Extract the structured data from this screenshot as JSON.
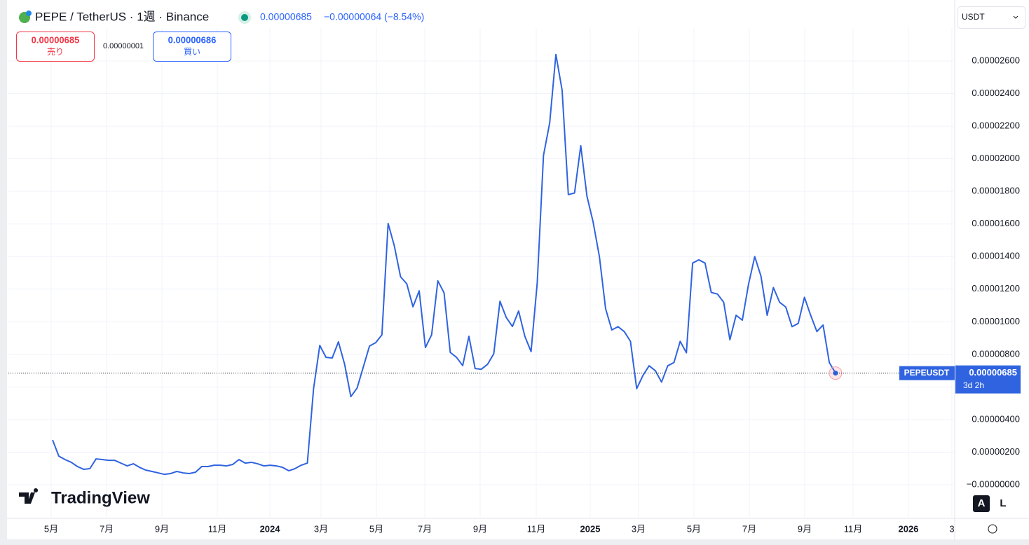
{
  "header": {
    "title": "PEPE / TetherUS · 1週 · Binance",
    "price": "0.00000685",
    "change": "−0.00000064 (−8.54%)",
    "sell_price": "0.00000685",
    "sell_label": "売り",
    "spread": "0.00000001",
    "buy_price": "0.00000686",
    "buy_label": "買い",
    "currency": "USDT"
  },
  "chart_data": {
    "type": "line",
    "series": [
      {
        "name": "PEPEUSDT",
        "color": "#2f63e0",
        "values": [
          2.75e-06,
          1.76e-06,
          1.55e-06,
          1.38e-06,
          1.12e-06,
          9.5e-07,
          9.9e-07,
          1.59e-06,
          1.55e-06,
          1.5e-06,
          1.5e-06,
          1.33e-06,
          1.16e-06,
          1.29e-06,
          1.07e-06,
          9e-07,
          8.2e-07,
          7.3e-07,
          6.4e-07,
          6.9e-07,
          8.2e-07,
          7.3e-07,
          6.9e-07,
          7.7e-07,
          1.12e-06,
          1.12e-06,
          1.2e-06,
          1.2e-06,
          1.16e-06,
          1.25e-06,
          1.55e-06,
          1.33e-06,
          1.38e-06,
          1.29e-06,
          1.16e-06,
          1.2e-06,
          1.16e-06,
          1.07e-06,
          8.6e-07,
          9.9e-07,
          1.2e-06,
          1.33e-06,
          5.89e-06,
          8.55e-06,
          7.82e-06,
          7.78e-06,
          8.77e-06,
          7.39e-06,
          5.41e-06,
          5.93e-06,
          7.22e-06,
          8.51e-06,
          8.72e-06,
          9.2e-06,
          1.603e-05,
          1.465e-05,
          1.276e-05,
          1.233e-05,
          1.092e-05,
          1.19e-05,
          8.42e-06,
          9.2e-06,
          1.251e-05,
          1.178e-05,
          8.12e-06,
          7.82e-06,
          7.31e-06,
          9.11e-06,
          7.13e-06,
          7.09e-06,
          7.39e-06,
          8.04e-06,
          1.126e-05,
          1.027e-05,
          9.71e-06,
          1.066e-05,
          9.11e-06,
          8.17e-06,
          1.24e-05,
          2.02e-05,
          2.22e-05,
          2.64e-05,
          2.42e-05,
          1.78e-05,
          1.79e-05,
          2.08e-05,
          1.77e-05,
          1.61e-05,
          1.4e-05,
          1.08e-05,
          9.5e-06,
          9.7e-06,
          9.4e-06,
          8.8e-06,
          5.9e-06,
          6.7e-06,
          7.3e-06,
          7e-06,
          6.3e-06,
          7.3e-06,
          7.5e-06,
          8.8e-06,
          8.1e-06,
          1.36e-05,
          1.38e-05,
          1.36e-05,
          1.18e-05,
          1.17e-05,
          1.12e-05,
          8.9e-06,
          1.04e-05,
          1.01e-05,
          1.23e-05,
          1.4e-05,
          1.28e-05,
          1.04e-05,
          1.21e-05,
          1.12e-05,
          1.09e-05,
          9.7e-06,
          9.9e-06,
          1.15e-05,
          1.04e-05,
          9.4e-06,
          9.8e-06,
          7.5e-06,
          6.85e-06
        ]
      }
    ],
    "xlim": [
      -7.11,
      145.18
    ],
    "xticks": [
      {
        "value": -0.23,
        "label": "5月"
      },
      {
        "value": 8.69,
        "label": "7月"
      },
      {
        "value": 17.6,
        "label": "9月"
      },
      {
        "value": 26.51,
        "label": "11月"
      },
      {
        "value": 34.97,
        "label": "2024"
      },
      {
        "value": 43.2,
        "label": "3月"
      },
      {
        "value": 52.11,
        "label": "5月"
      },
      {
        "value": 59.9,
        "label": "7月"
      },
      {
        "value": 68.81,
        "label": "9月"
      },
      {
        "value": 77.83,
        "label": "11月"
      },
      {
        "value": 86.52,
        "label": "2025"
      },
      {
        "value": 94.3,
        "label": "3月"
      },
      {
        "value": 103.21,
        "label": "5月"
      },
      {
        "value": 112.13,
        "label": "7月"
      },
      {
        "value": 121.04,
        "label": "9月"
      },
      {
        "value": 128.82,
        "label": "11月"
      },
      {
        "value": 137.73,
        "label": "2026"
      },
      {
        "value": 144.73,
        "label": "3"
      }
    ],
    "ylim": [
      -2.06e-06,
      2.802e-05
    ],
    "yticks": [
      {
        "value": 0,
        "label": "−0.00000000"
      },
      {
        "value": 2e-06,
        "label": "0.00000200"
      },
      {
        "value": 4e-06,
        "label": "0.00000400"
      },
      {
        "value": 6e-06,
        "label": "0.00000600"
      },
      {
        "value": 8e-06,
        "label": "0.00000800"
      },
      {
        "value": 1e-05,
        "label": "0.00001000"
      },
      {
        "value": 1.2e-05,
        "label": "0.00001200"
      },
      {
        "value": 1.4e-05,
        "label": "0.00001400"
      },
      {
        "value": 1.6e-05,
        "label": "0.00001600"
      },
      {
        "value": 1.8e-05,
        "label": "0.00001800"
      },
      {
        "value": 2e-05,
        "label": "0.00002000"
      },
      {
        "value": 2.2e-05,
        "label": "0.00002200"
      },
      {
        "value": 2.4e-05,
        "label": "0.00002400"
      },
      {
        "value": 2.6e-05,
        "label": "0.00002600"
      }
    ],
    "grid": true,
    "last_price": {
      "value": 6.85e-06,
      "label": "0.00000685"
    },
    "countdown": "3d 2h"
  },
  "footer": {
    "brand": "TradingView",
    "auto_button": "A",
    "log_button": "L"
  }
}
